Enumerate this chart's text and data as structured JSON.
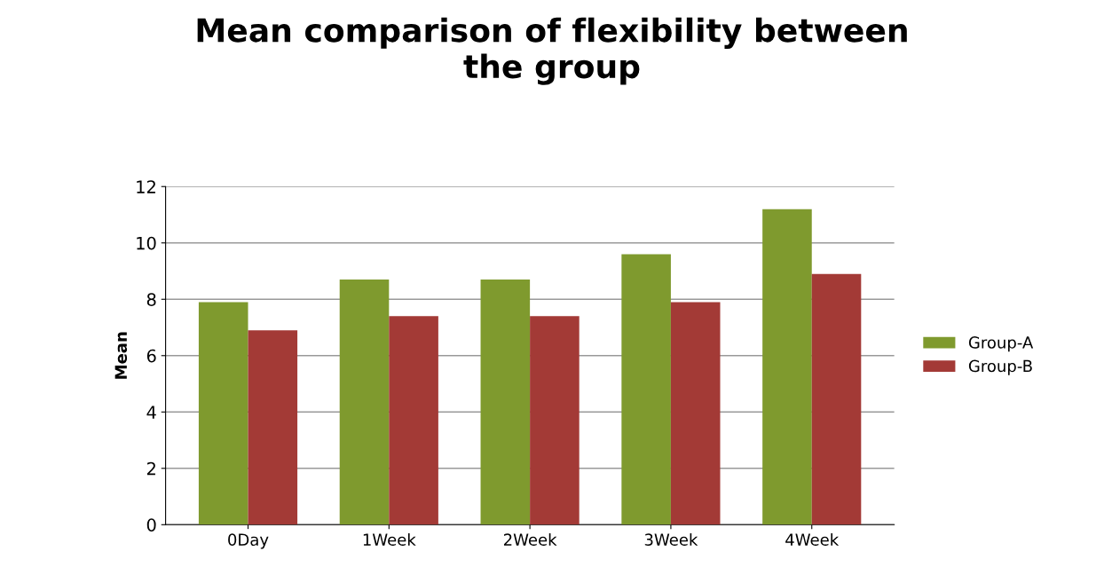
{
  "chart_data": {
    "type": "bar",
    "title": "Mean comparison of flexibility between\nthe group",
    "ylabel": "Mean",
    "categories": [
      "0Day",
      "1Week",
      "2Week",
      "3Week",
      "4Week"
    ],
    "series": [
      {
        "name": "Group-A",
        "color": "#7f9a2e",
        "values": [
          7.9,
          8.7,
          8.7,
          9.6,
          11.2
        ]
      },
      {
        "name": "Group-B",
        "color": "#a33a36",
        "values": [
          6.9,
          7.4,
          7.4,
          7.9,
          8.9
        ]
      }
    ],
    "ylim": [
      0,
      12
    ],
    "yticks": [
      0,
      2,
      4,
      6,
      8,
      10,
      12
    ],
    "grid": "y",
    "legend": "right"
  }
}
